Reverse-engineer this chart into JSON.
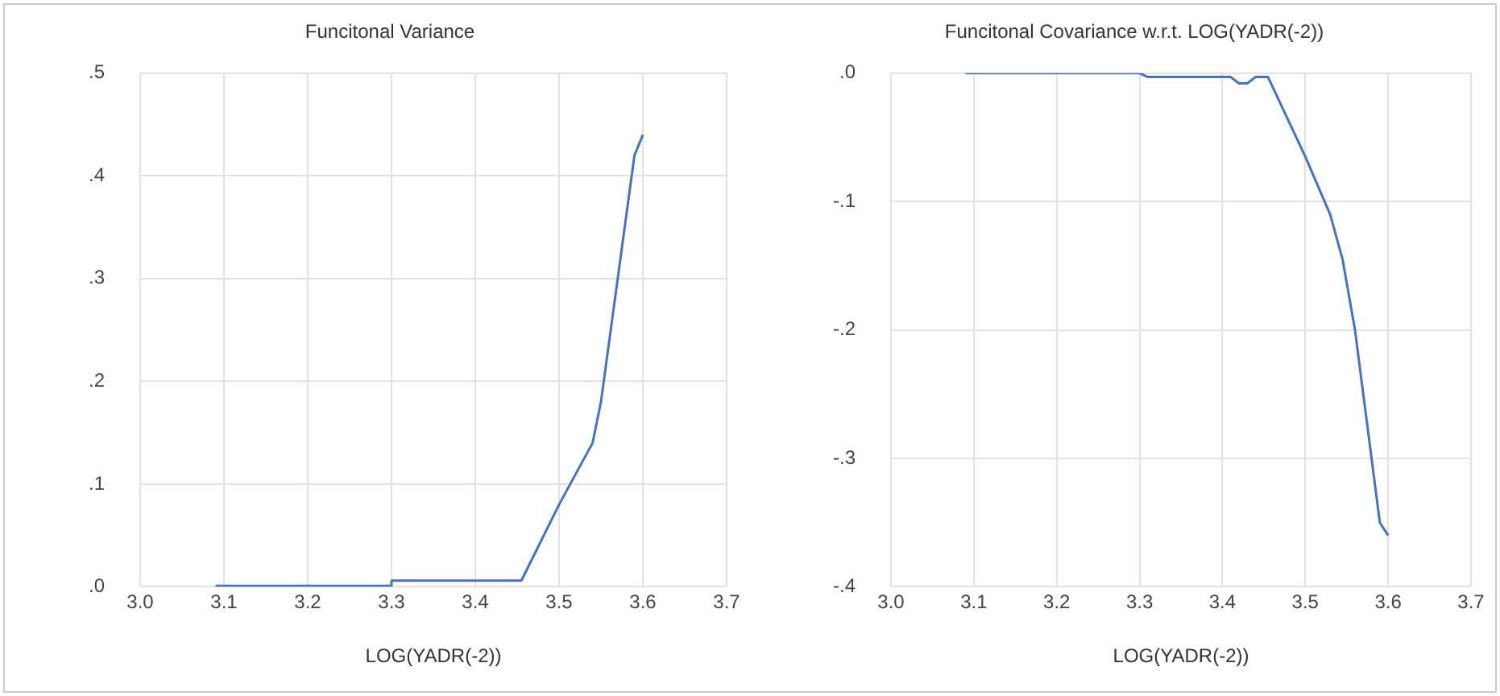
{
  "chart_data": [
    {
      "type": "line",
      "title": "Funcitonal Variance",
      "xlabel": "LOG(YADR(-2))",
      "xlim": [
        3.0,
        3.7
      ],
      "xticks": [
        {
          "value": 3.0,
          "label": "3.0"
        },
        3.1,
        3.2,
        3.3,
        3.4,
        3.5,
        3.6,
        3.7
      ],
      "ylim": [
        0,
        0.5
      ],
      "yticks": [
        {
          "value": 0,
          "label": ".0"
        },
        {
          "value": 0.1,
          "label": ".1"
        },
        {
          "value": 0.2,
          "label": ".2"
        },
        {
          "value": 0.3,
          "label": ".3"
        },
        {
          "value": 0.4,
          "label": ".4"
        },
        {
          "value": 0.5,
          "label": ".5"
        }
      ],
      "grid": true,
      "legend": false,
      "marker": "none",
      "line_style": "solid",
      "series": [
        {
          "color": "#4472c4",
          "x": [
            3.09,
            3.3,
            3.3,
            3.455,
            3.5,
            3.54,
            3.55,
            3.59,
            3.6
          ],
          "values": [
            0.001,
            0.001,
            0.006,
            0.006,
            0.08,
            0.14,
            0.18,
            0.42,
            0.44
          ]
        }
      ]
    },
    {
      "type": "line",
      "title": "Funcitonal Covariance w.r.t. LOG(YADR(-2))",
      "xlabel": "LOG(YADR(-2))",
      "xlim": [
        3.0,
        3.7
      ],
      "xticks": [
        {
          "value": 3.0,
          "label": "3.0"
        },
        3.1,
        3.2,
        3.3,
        3.4,
        3.5,
        3.6,
        3.7
      ],
      "ylim": [
        -0.4,
        0
      ],
      "yticks": [
        {
          "value": -0.4,
          "label": "-.4"
        },
        {
          "value": -0.3,
          "label": "-.3"
        },
        {
          "value": -0.2,
          "label": "-.2"
        },
        {
          "value": -0.1,
          "label": "-.1"
        },
        {
          "value": 0,
          "label": ".0"
        }
      ],
      "grid": true,
      "legend": false,
      "marker": "none",
      "line_style": "solid",
      "series": [
        {
          "color": "#4472c4",
          "x": [
            3.09,
            3.3,
            3.31,
            3.41,
            3.42,
            3.43,
            3.44,
            3.455,
            3.5,
            3.53,
            3.545,
            3.56,
            3.58,
            3.59,
            3.6
          ],
          "values": [
            0.0,
            0.0,
            -0.003,
            -0.003,
            -0.008,
            -0.008,
            -0.003,
            -0.003,
            -0.065,
            -0.11,
            -0.145,
            -0.2,
            -0.3,
            -0.35,
            -0.36
          ]
        }
      ]
    }
  ]
}
